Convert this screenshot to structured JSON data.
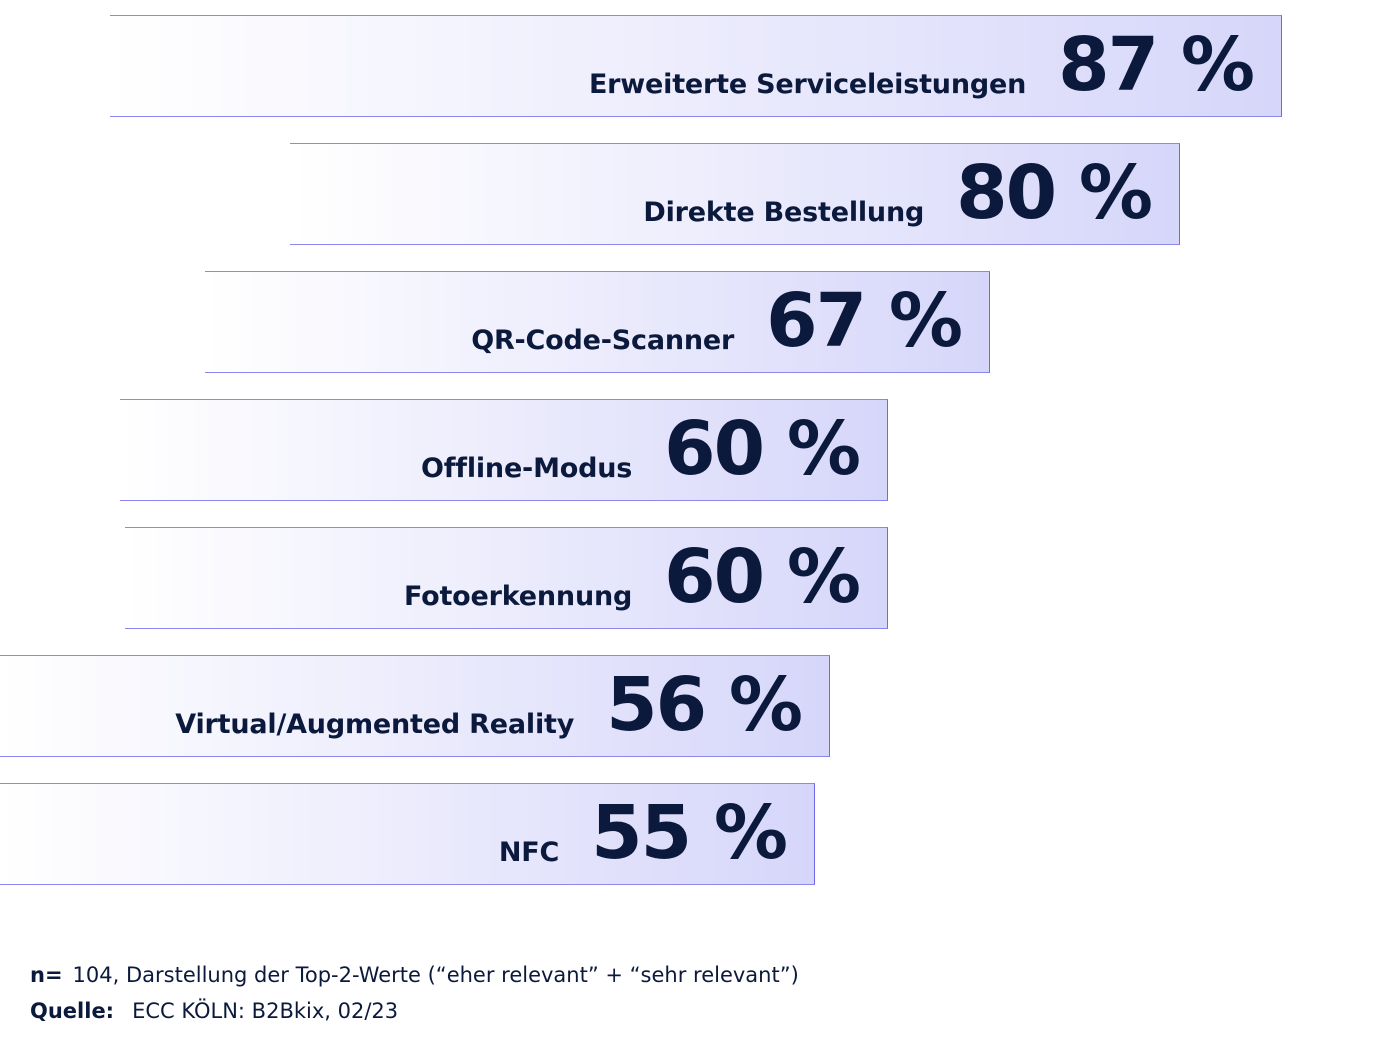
{
  "chart_data": {
    "type": "bar",
    "orientation": "horizontal",
    "categories": [
      "Erweiterte Serviceleistungen",
      "Direkte Bestellung",
      "QR-Code-Scanner",
      "Offline-Modus",
      "Fotoerkennung",
      "Virtual/Augmented Reality",
      "NFC"
    ],
    "values": [
      87,
      80,
      67,
      60,
      60,
      56,
      55
    ],
    "value_labels": [
      "87 %",
      "80 %",
      "67 %",
      "60 %",
      "60 %",
      "56 %",
      "55 %"
    ],
    "unit": "%",
    "grid": false,
    "legend": "none"
  },
  "footnotes": {
    "n_key": "n=",
    "n_text": "104, Darstellung der Top-2-Werte (“eher relevant” + “sehr relevant”)",
    "source_key": "Quelle:",
    "source_text": "ECC KÖLN: B2Bkix, 02/23"
  },
  "colors": {
    "text": "#0b1a3c",
    "bar_border": "#6f69ea",
    "bar_fill_end": "#d6d6fa"
  }
}
